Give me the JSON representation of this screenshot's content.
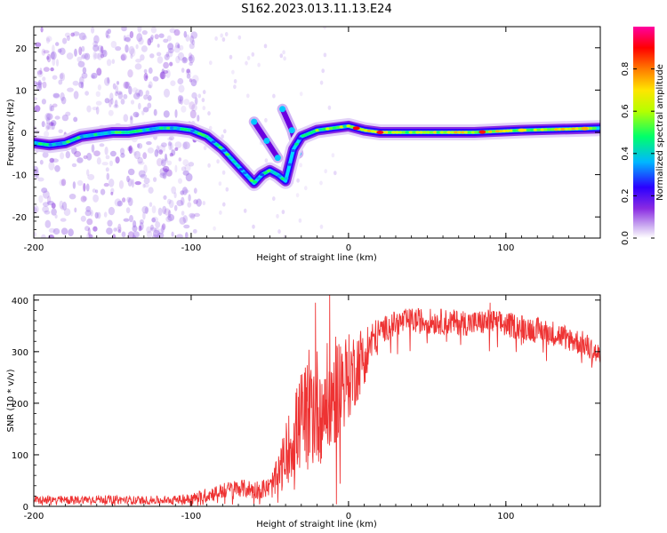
{
  "title": "S162.2023.013.11.13.E24",
  "chart_data": [
    {
      "type": "heatmap",
      "description_of_axes": "spectrogram of normalized spectral amplitude vs height",
      "xlabel": "Height of straight line (km)",
      "ylabel": "Frequency (Hz)",
      "xlim": [
        -200,
        160
      ],
      "ylim": [
        -25,
        25
      ],
      "xticks": [
        -200,
        -100,
        0,
        100
      ],
      "yticks": [
        -20,
        -10,
        0,
        10,
        20
      ],
      "grid": false,
      "colorbar": {
        "label": "Normalized spectral amplitude",
        "range": [
          0,
          1
        ],
        "ticks": [
          0.0,
          0.2,
          0.4,
          0.6,
          0.8
        ],
        "colormap": [
          "#ffffff",
          "#c9a8f0",
          "#8a2be2",
          "#2b00ff",
          "#00b7ff",
          "#00ff6a",
          "#b5ff00",
          "#ffe500",
          "#ff7a00",
          "#ff0000",
          "#ff00a0"
        ]
      },
      "trace": [
        {
          "x": -200,
          "y": -2.5
        },
        {
          "x": -190,
          "y": -3.0
        },
        {
          "x": -180,
          "y": -2.5
        },
        {
          "x": -170,
          "y": -1.0
        },
        {
          "x": -160,
          "y": -0.5
        },
        {
          "x": -150,
          "y": 0.0
        },
        {
          "x": -140,
          "y": 0.0
        },
        {
          "x": -130,
          "y": 0.5
        },
        {
          "x": -120,
          "y": 1.0
        },
        {
          "x": -110,
          "y": 1.0
        },
        {
          "x": -100,
          "y": 0.5
        },
        {
          "x": -90,
          "y": -1.0
        },
        {
          "x": -80,
          "y": -4.0
        },
        {
          "x": -70,
          "y": -8.0
        },
        {
          "x": -60,
          "y": -12.0
        },
        {
          "x": -55,
          "y": -10.0
        },
        {
          "x": -50,
          "y": -9.0
        },
        {
          "x": -45,
          "y": -10.0
        },
        {
          "x": -40,
          "y": -11.5
        },
        {
          "x": -35,
          "y": -4.0
        },
        {
          "x": -30,
          "y": -1.0
        },
        {
          "x": -20,
          "y": 0.5
        },
        {
          "x": -10,
          "y": 1.0
        },
        {
          "x": 0,
          "y": 1.5
        },
        {
          "x": 10,
          "y": 0.5
        },
        {
          "x": 20,
          "y": 0.0
        },
        {
          "x": 50,
          "y": 0.0
        },
        {
          "x": 80,
          "y": 0.0
        },
        {
          "x": 110,
          "y": 0.5
        },
        {
          "x": 140,
          "y": 0.8
        },
        {
          "x": 160,
          "y": 1.0
        }
      ],
      "side_branches": [
        [
          {
            "x": -60,
            "y": 2.5
          },
          {
            "x": -52,
            "y": -2.0
          },
          {
            "x": -45,
            "y": -6.0
          }
        ],
        [
          {
            "x": -42,
            "y": 5.5
          },
          {
            "x": -36,
            "y": 0.5
          },
          {
            "x": -32,
            "y": -5.0
          }
        ]
      ],
      "scatter_region": {
        "x": [
          -200,
          -95
        ],
        "y": [
          -25,
          25
        ]
      }
    },
    {
      "type": "line",
      "xlabel": "Height of straight line (km)",
      "ylabel": "SNR (10 * v/v)",
      "xlim": [
        -200,
        160
      ],
      "ylim": [
        0,
        410
      ],
      "xticks": [
        -200,
        -100,
        0,
        100
      ],
      "yticks": [
        0,
        100,
        200,
        300,
        400
      ],
      "grid": false,
      "color": "#ee3333",
      "envelope": [
        {
          "x": -200,
          "y": 12
        },
        {
          "x": -180,
          "y": 12
        },
        {
          "x": -160,
          "y": 14
        },
        {
          "x": -140,
          "y": 12
        },
        {
          "x": -120,
          "y": 12
        },
        {
          "x": -100,
          "y": 14
        },
        {
          "x": -90,
          "y": 22
        },
        {
          "x": -80,
          "y": 30
        },
        {
          "x": -70,
          "y": 36
        },
        {
          "x": -60,
          "y": 32
        },
        {
          "x": -50,
          "y": 36
        },
        {
          "x": -45,
          "y": 55
        },
        {
          "x": -40,
          "y": 100
        },
        {
          "x": -35,
          "y": 135
        },
        {
          "x": -30,
          "y": 165
        },
        {
          "x": -25,
          "y": 185
        },
        {
          "x": -20,
          "y": 195
        },
        {
          "x": -15,
          "y": 200
        },
        {
          "x": -10,
          "y": 215
        },
        {
          "x": -5,
          "y": 240
        },
        {
          "x": 0,
          "y": 250
        },
        {
          "x": 5,
          "y": 270
        },
        {
          "x": 10,
          "y": 295
        },
        {
          "x": 15,
          "y": 320
        },
        {
          "x": 20,
          "y": 340
        },
        {
          "x": 30,
          "y": 355
        },
        {
          "x": 40,
          "y": 360
        },
        {
          "x": 60,
          "y": 358
        },
        {
          "x": 80,
          "y": 355
        },
        {
          "x": 90,
          "y": 358
        },
        {
          "x": 100,
          "y": 352
        },
        {
          "x": 110,
          "y": 348
        },
        {
          "x": 120,
          "y": 342
        },
        {
          "x": 130,
          "y": 336
        },
        {
          "x": 140,
          "y": 326
        },
        {
          "x": 150,
          "y": 314
        },
        {
          "x": 160,
          "y": 290
        }
      ],
      "noise_amplitude": [
        {
          "x": -200,
          "y": 8
        },
        {
          "x": -110,
          "y": 8
        },
        {
          "x": -90,
          "y": 14
        },
        {
          "x": -50,
          "y": 20
        },
        {
          "x": -40,
          "y": 60
        },
        {
          "x": -25,
          "y": 120
        },
        {
          "x": -10,
          "y": 110
        },
        {
          "x": 10,
          "y": 60
        },
        {
          "x": 20,
          "y": 25
        },
        {
          "x": 160,
          "y": 25
        }
      ],
      "spikes": [
        {
          "x": -21,
          "y": 395
        },
        {
          "x": -12,
          "y": 410
        },
        {
          "x": 90,
          "y": 395
        }
      ]
    }
  ]
}
